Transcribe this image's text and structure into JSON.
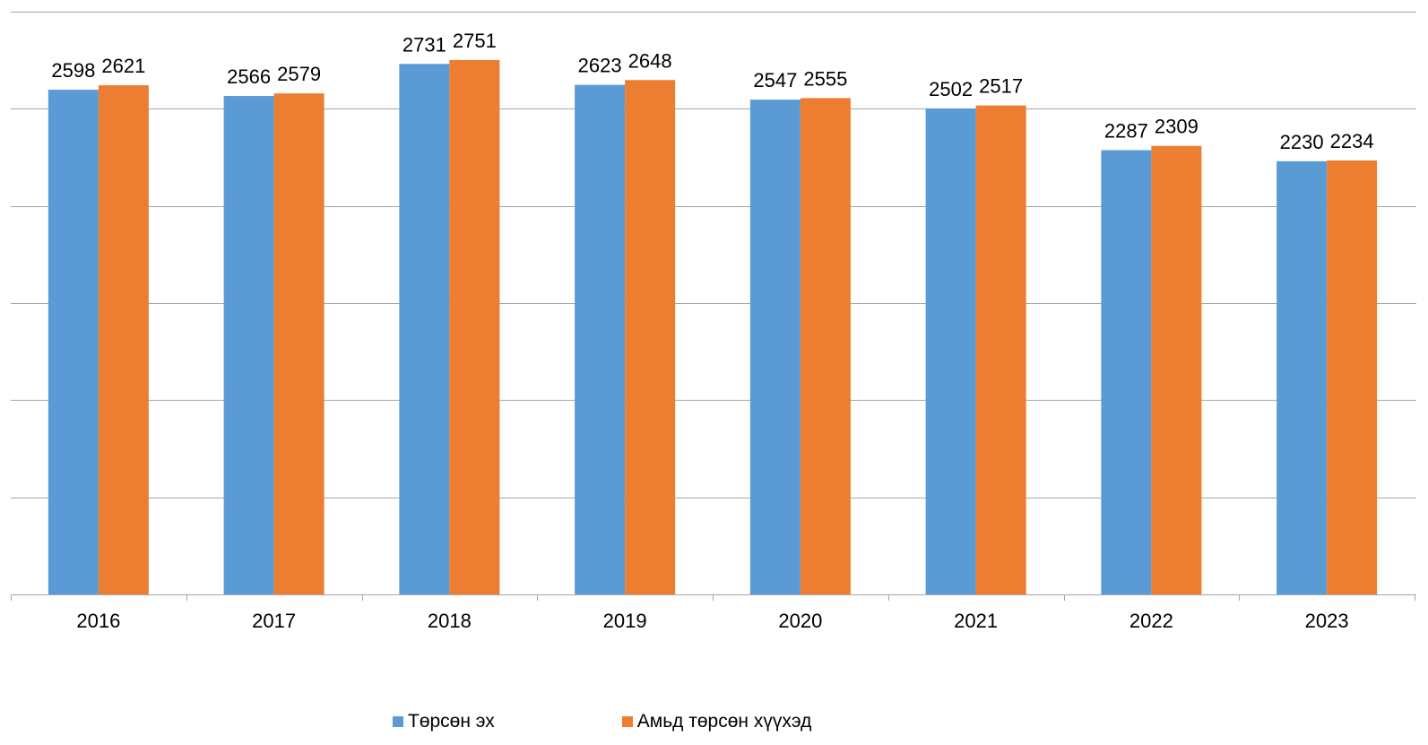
{
  "chart_data": {
    "type": "bar",
    "categories": [
      "2016",
      "2017",
      "2018",
      "2019",
      "2020",
      "2021",
      "2022",
      "2023"
    ],
    "series": [
      {
        "name": "Төрсөн эх",
        "color": "#5b9bd5",
        "values": [
          2598,
          2566,
          2731,
          2623,
          2547,
          2502,
          2287,
          2230
        ]
      },
      {
        "name": "Амьд төрсөн хүүхэд",
        "color": "#ed7d31",
        "values": [
          2621,
          2579,
          2751,
          2648,
          2555,
          2517,
          2309,
          2234
        ]
      }
    ],
    "ylim": [
      0,
      3000
    ],
    "gridline_step": 500,
    "grid": true,
    "legend_position": "bottom",
    "data_labels": true
  }
}
